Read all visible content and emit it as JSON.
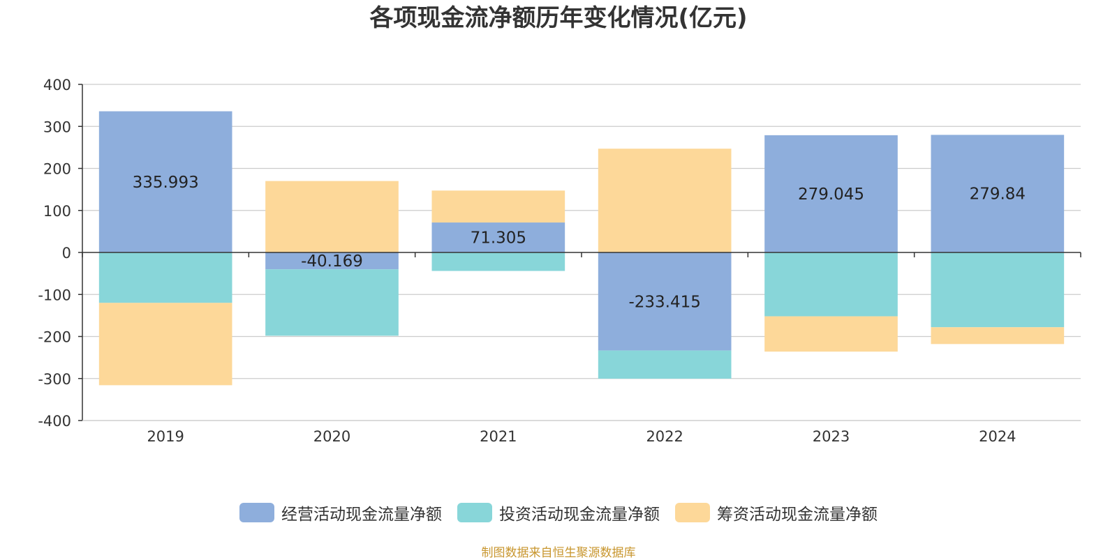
{
  "chart_data": {
    "type": "bar",
    "stacked": true,
    "title": "各项现金流净额历年变化情况(亿元)",
    "categories": [
      "2019",
      "2020",
      "2021",
      "2022",
      "2023",
      "2024"
    ],
    "series": [
      {
        "name": "经营活动现金流量净额",
        "color": "#8eaedc",
        "values": [
          335.993,
          -40.169,
          71.305,
          -233.415,
          279.045,
          279.84
        ],
        "data_labels": [
          "335.993",
          "-40.169",
          "71.305",
          "-233.415",
          "279.045",
          "279.84"
        ]
      },
      {
        "name": "投资活动现金流量净额",
        "color": "#88d6d9",
        "values": [
          -120,
          -158,
          -44,
          -67,
          -152,
          -178
        ]
      },
      {
        "name": "筹资活动现金流量净额",
        "color": "#fdd899",
        "values": [
          -196,
          170,
          76,
          247,
          -84,
          -40
        ]
      }
    ],
    "ylim": [
      -400,
      400
    ],
    "yticks": [
      400,
      300,
      200,
      100,
      0,
      -100,
      -200,
      -300,
      -400
    ],
    "ytick_labels": [
      "400",
      "300",
      "200",
      "100",
      "0",
      "-100",
      "-200",
      "-300",
      "-400"
    ],
    "xlabel": "",
    "ylabel": "",
    "grid": true,
    "legend_position": "bottom"
  },
  "source_note": "制图数据来自恒生聚源数据库"
}
